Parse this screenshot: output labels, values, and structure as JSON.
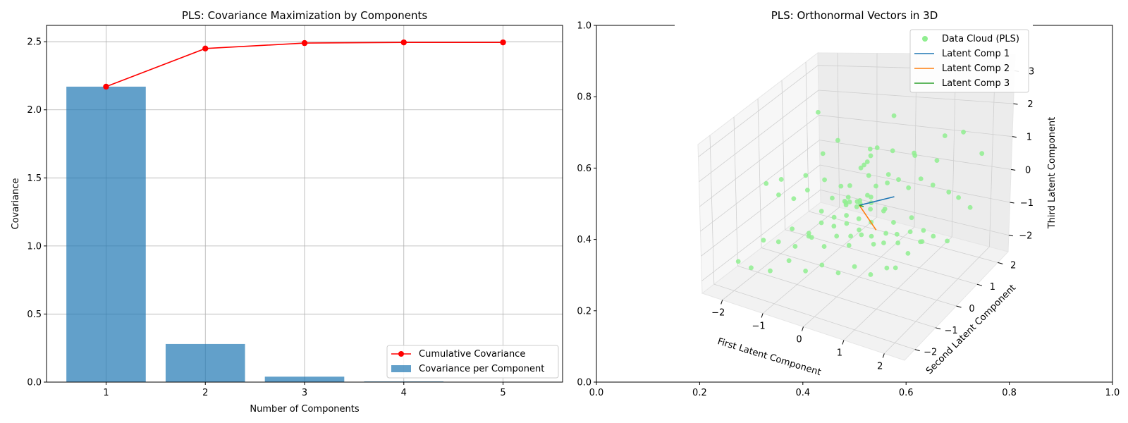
{
  "chart_data": [
    {
      "type": "bar",
      "title": "PLS: Covariance Maximization by Components",
      "xlabel": "Number of Components",
      "ylabel": "Covariance",
      "categories": [
        "1",
        "2",
        "3",
        "4",
        "5"
      ],
      "ylim": [
        0,
        2.62
      ],
      "yticks": [
        "0.0",
        "0.5",
        "1.0",
        "1.5",
        "2.0",
        "2.5"
      ],
      "grid": true,
      "legend_position": "lower-right",
      "series": [
        {
          "name": "Cumulative Covariance",
          "kind": "line",
          "color": "#ff0000",
          "values": [
            2.17,
            2.45,
            2.49,
            2.495,
            2.495
          ]
        },
        {
          "name": "Covariance per Component",
          "kind": "bar",
          "color": "#1f77b4",
          "values": [
            2.17,
            0.28,
            0.04,
            0.005,
            0.0005
          ]
        }
      ]
    },
    {
      "type": "scatter",
      "title": "PLS: Orthonormal Vectors in 3D",
      "xlabel": "First Latent Component",
      "ylabel": "Second Latent Component",
      "zlabel": "Third Latent Component",
      "overlay_axes": {
        "xticks": [
          "0.0",
          "0.2",
          "0.4",
          "0.6",
          "0.8",
          "1.0"
        ],
        "yticks": [
          "0.0",
          "0.2",
          "0.4",
          "0.6",
          "0.8",
          "1.0"
        ]
      },
      "xticks": [
        "−2",
        "−1",
        "0",
        "1",
        "2"
      ],
      "yticks": [
        "−2",
        "−1",
        "0",
        "1",
        "2"
      ],
      "zticks": [
        "−2",
        "−1",
        "0",
        "1",
        "2",
        "3"
      ],
      "xlim": [
        -2.5,
        2.5
      ],
      "ylim": [
        -2.5,
        2.5
      ],
      "zlim": [
        -2.5,
        3.5
      ],
      "legend_position": "upper-right",
      "point_color": "#90ee90",
      "legend": [
        {
          "name": "Data Cloud (PLS)",
          "kind": "marker",
          "color": "#90ee90"
        },
        {
          "name": "Latent Comp 1",
          "kind": "line",
          "color": "#1f77b4"
        },
        {
          "name": "Latent Comp 2",
          "kind": "line",
          "color": "#ff7f0e"
        },
        {
          "name": "Latent Comp 3",
          "kind": "line",
          "color": "#2ca02c"
        }
      ],
      "vectors": [
        {
          "name": "Latent Comp 1",
          "color": "#1f77b4",
          "from": [
            0,
            0,
            0
          ],
          "to": [
            0.6,
            0.5,
            0.1
          ]
        },
        {
          "name": "Latent Comp 2",
          "color": "#ff7f0e",
          "from": [
            0,
            0,
            0
          ],
          "to": [
            0.7,
            -0.5,
            -0.3
          ]
        },
        {
          "name": "Latent Comp 3",
          "color": "#2ca02c",
          "from": [
            0,
            0,
            0
          ],
          "to": [
            0.05,
            0.1,
            -0.1
          ]
        }
      ],
      "points": [
        [
          -1.2,
          0.3,
          2.9
        ],
        [
          0.4,
          0.8,
          2.6
        ],
        [
          -0.6,
          0.1,
          2.1
        ],
        [
          -0.8,
          -0.2,
          1.8
        ],
        [
          0.1,
          0.6,
          1.6
        ],
        [
          1.4,
          2.2,
          1.2
        ],
        [
          -2.1,
          -0.4,
          0.5
        ],
        [
          -1.9,
          -0.1,
          0.5
        ],
        [
          -1.5,
          -0.9,
          0.6
        ],
        [
          -1.3,
          -0.6,
          0.3
        ],
        [
          -0.9,
          -0.7,
          0.8
        ],
        [
          -0.4,
          -0.5,
          0.5
        ],
        [
          -0.2,
          -0.3,
          0.3
        ],
        [
          0.0,
          -0.1,
          0.2
        ],
        [
          0.2,
          0.0,
          0.4
        ],
        [
          0.3,
          0.2,
          0.6
        ],
        [
          0.5,
          0.4,
          0.9
        ],
        [
          0.7,
          0.5,
          0.7
        ],
        [
          0.9,
          0.6,
          0.4
        ],
        [
          1.1,
          0.8,
          0.6
        ],
        [
          1.3,
          1.0,
          0.3
        ],
        [
          1.6,
          1.2,
          0.0
        ],
        [
          1.8,
          1.3,
          -0.2
        ],
        [
          2.0,
          1.5,
          -0.6
        ],
        [
          -1.0,
          -1.2,
          -0.3
        ],
        [
          -0.7,
          -1.0,
          -0.5
        ],
        [
          -0.5,
          -0.8,
          -0.2
        ],
        [
          -0.3,
          -0.6,
          -0.4
        ],
        [
          -0.1,
          -0.4,
          -0.1
        ],
        [
          0.1,
          -0.2,
          -0.3
        ],
        [
          0.3,
          0.0,
          -0.5
        ],
        [
          0.5,
          0.2,
          -0.2
        ],
        [
          0.7,
          0.3,
          -0.6
        ],
        [
          0.9,
          0.1,
          -0.8
        ],
        [
          1.1,
          0.4,
          -0.4
        ],
        [
          1.3,
          0.6,
          -0.9
        ],
        [
          1.5,
          0.7,
          -1.1
        ],
        [
          -1.6,
          -1.4,
          -0.8
        ],
        [
          -1.4,
          -1.1,
          -1.0
        ],
        [
          -1.1,
          -0.9,
          -1.2
        ],
        [
          -0.8,
          -0.7,
          -0.9
        ],
        [
          -0.6,
          -0.5,
          -1.3
        ],
        [
          -0.4,
          -0.3,
          -1.0
        ],
        [
          -0.2,
          -0.1,
          -1.4
        ],
        [
          0.0,
          0.1,
          -1.1
        ],
        [
          0.2,
          0.3,
          -1.5
        ],
        [
          0.4,
          0.5,
          -1.2
        ],
        [
          0.6,
          0.7,
          -1.6
        ],
        [
          0.8,
          0.9,
          -1.3
        ],
        [
          1.0,
          1.1,
          -1.7
        ],
        [
          -2.0,
          -1.8,
          -1.5
        ],
        [
          -1.8,
          -1.6,
          -1.8
        ],
        [
          -1.5,
          -1.3,
          -2.0
        ],
        [
          -1.2,
          -1.0,
          -1.7
        ],
        [
          -0.9,
          -0.8,
          -2.1
        ],
        [
          -0.6,
          -0.6,
          -1.9
        ],
        [
          -0.3,
          -0.4,
          -2.2
        ],
        [
          0.0,
          -0.2,
          -2.0
        ],
        [
          0.3,
          0.0,
          -2.3
        ],
        [
          0.6,
          0.2,
          -2.1
        ],
        [
          1.2,
          -0.5,
          -1.4
        ],
        [
          1.4,
          -0.3,
          -1.0
        ],
        [
          1.6,
          -0.1,
          -0.7
        ],
        [
          1.0,
          -0.7,
          -0.5
        ],
        [
          0.8,
          -0.9,
          -0.2
        ],
        [
          0.6,
          -1.1,
          0.1
        ],
        [
          0.4,
          -1.3,
          0.4
        ],
        [
          0.2,
          -1.5,
          0.7
        ],
        [
          0.0,
          -1.7,
          1.0
        ],
        [
          -0.2,
          -1.9,
          0.2
        ],
        [
          -0.4,
          1.2,
          0.8
        ],
        [
          -0.6,
          1.4,
          0.4
        ],
        [
          -0.8,
          1.6,
          0.1
        ],
        [
          -1.0,
          1.8,
          -0.2
        ],
        [
          -0.3,
          1.0,
          1.2
        ],
        [
          0.1,
          1.3,
          1.0
        ],
        [
          0.5,
          1.6,
          0.7
        ],
        [
          0.9,
          1.9,
          0.4
        ],
        [
          1.2,
          1.7,
          1.4
        ],
        [
          0.7,
          1.2,
          1.1
        ],
        [
          -1.7,
          0.6,
          0.2
        ],
        [
          -1.4,
          0.9,
          -0.1
        ],
        [
          -1.1,
          1.1,
          -0.4
        ],
        [
          -0.8,
          0.8,
          -0.7
        ],
        [
          -0.5,
          0.5,
          -1.6
        ],
        [
          0.2,
          -0.8,
          1.3
        ],
        [
          0.5,
          -0.5,
          1.5
        ],
        [
          0.8,
          -0.2,
          1.1
        ],
        [
          -0.1,
          0.2,
          0.0
        ],
        [
          0.05,
          -0.05,
          0.1
        ],
        [
          -0.15,
          0.15,
          -0.2
        ],
        [
          0.25,
          0.05,
          -0.1
        ],
        [
          -0.25,
          -0.15,
          0.05
        ],
        [
          0.15,
          0.25,
          0.15
        ],
        [
          0.35,
          -0.1,
          0.25
        ],
        [
          -0.45,
          0.3,
          -0.05
        ],
        [
          0.45,
          0.35,
          -0.25
        ],
        [
          -0.05,
          -0.35,
          0.35
        ],
        [
          1.7,
          1.0,
          -1.4
        ],
        [
          2.1,
          1.8,
          0.9
        ]
      ]
    }
  ]
}
